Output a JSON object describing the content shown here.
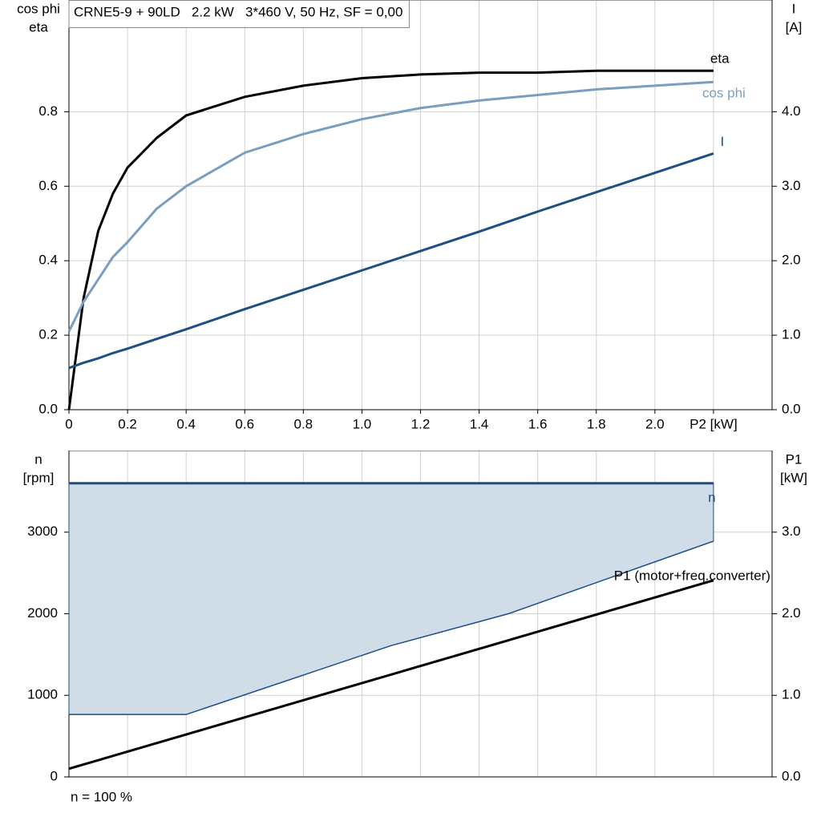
{
  "chart_data": [
    {
      "type": "line",
      "title": "CRNE5-9 + 90LD   2.2 kW   3*460 V, 50 Hz, SF = 0,00",
      "y_label": [
        "cos phi",
        "eta"
      ],
      "y2_label": [
        "I",
        "[A]"
      ],
      "x": [
        0,
        0.05,
        0.1,
        0.15,
        0.2,
        0.3,
        0.4,
        0.6,
        0.8,
        1.0,
        1.2,
        1.4,
        1.6,
        1.8,
        2.0,
        2.2
      ],
      "xlim": [
        0,
        2.4
      ],
      "xticks": [
        0,
        0.2,
        0.4,
        0.6,
        0.8,
        {
          "value": 1,
          "label": "1.0"
        },
        1.2,
        1.4,
        1.6,
        1.8,
        {
          "value": 2,
          "label": "2.0"
        },
        {
          "value": 2.2,
          "label": "P2 [kW]"
        }
      ],
      "ylim": [
        0,
        1.1
      ],
      "yticks": [
        {
          "value": 0,
          "label": "0.0"
        },
        0.2,
        0.4,
        0.6,
        0.8
      ],
      "y2lim": [
        0,
        5.5
      ],
      "y2ticks": [
        {
          "value": 0,
          "label": "0.0"
        },
        {
          "value": 1,
          "label": "1.0"
        },
        {
          "value": 2,
          "label": "2.0"
        },
        {
          "value": 3,
          "label": "3.0"
        },
        {
          "value": 4,
          "label": "4.0"
        }
      ],
      "grid": true,
      "series": [
        {
          "name": "eta",
          "color": "#000000",
          "values": [
            0,
            0.3,
            0.48,
            0.58,
            0.65,
            0.73,
            0.79,
            0.84,
            0.87,
            0.89,
            0.9,
            0.905,
            0.905,
            0.91,
            0.91,
            0.91
          ]
        },
        {
          "name": "cos phi",
          "color": "#7a9ebf",
          "values": [
            0.21,
            0.29,
            0.35,
            0.41,
            0.45,
            0.54,
            0.6,
            0.69,
            0.74,
            0.78,
            0.81,
            0.83,
            0.845,
            0.86,
            0.87,
            0.88
          ]
        },
        {
          "name": "I",
          "color": "#1f4e85",
          "axis": "y2",
          "values": [
            0.56,
            0.63,
            0.69,
            0.76,
            0.82,
            0.95,
            1.08,
            1.35,
            1.61,
            1.87,
            2.13,
            2.39,
            2.66,
            2.92,
            3.18,
            3.44
          ]
        }
      ]
    },
    {
      "type": "line",
      "y_label": [
        "n",
        "[rpm]"
      ],
      "y2_label": [
        "P1",
        "[kW]"
      ],
      "annotation": "n = 100 %",
      "xlim": [
        0,
        2.4
      ],
      "xticks": [
        0,
        0.2,
        0.4,
        0.6,
        0.8,
        1,
        1.2,
        1.4,
        1.6,
        1.8,
        2,
        2.2
      ],
      "xtick_labels": false,
      "ylim": [
        0,
        4000
      ],
      "yticks": [
        0,
        1000,
        2000,
        3000
      ],
      "y2lim": [
        0,
        4
      ],
      "y2ticks": [
        {
          "value": 0,
          "label": "0.0"
        },
        {
          "value": 1,
          "label": "1.0"
        },
        {
          "value": 2,
          "label": "2.0"
        },
        {
          "value": 3,
          "label": "3.0"
        }
      ],
      "grid": true,
      "series": [
        {
          "name": "n",
          "color": "#1f4e85",
          "fill": "#d0dce8",
          "x": [
            0,
            0.4,
            1.1,
            1.5,
            2.2
          ],
          "values": [
            3600,
            3600,
            3600,
            3600,
            3600
          ],
          "lower": [
            765,
            765,
            1610,
            2000,
            2890
          ]
        },
        {
          "name": "P1 (motor+freq.converter)",
          "color": "#000000",
          "axis": "y2",
          "x": [
            0,
            2.2
          ],
          "values": [
            0.1,
            2.41
          ]
        }
      ]
    }
  ]
}
